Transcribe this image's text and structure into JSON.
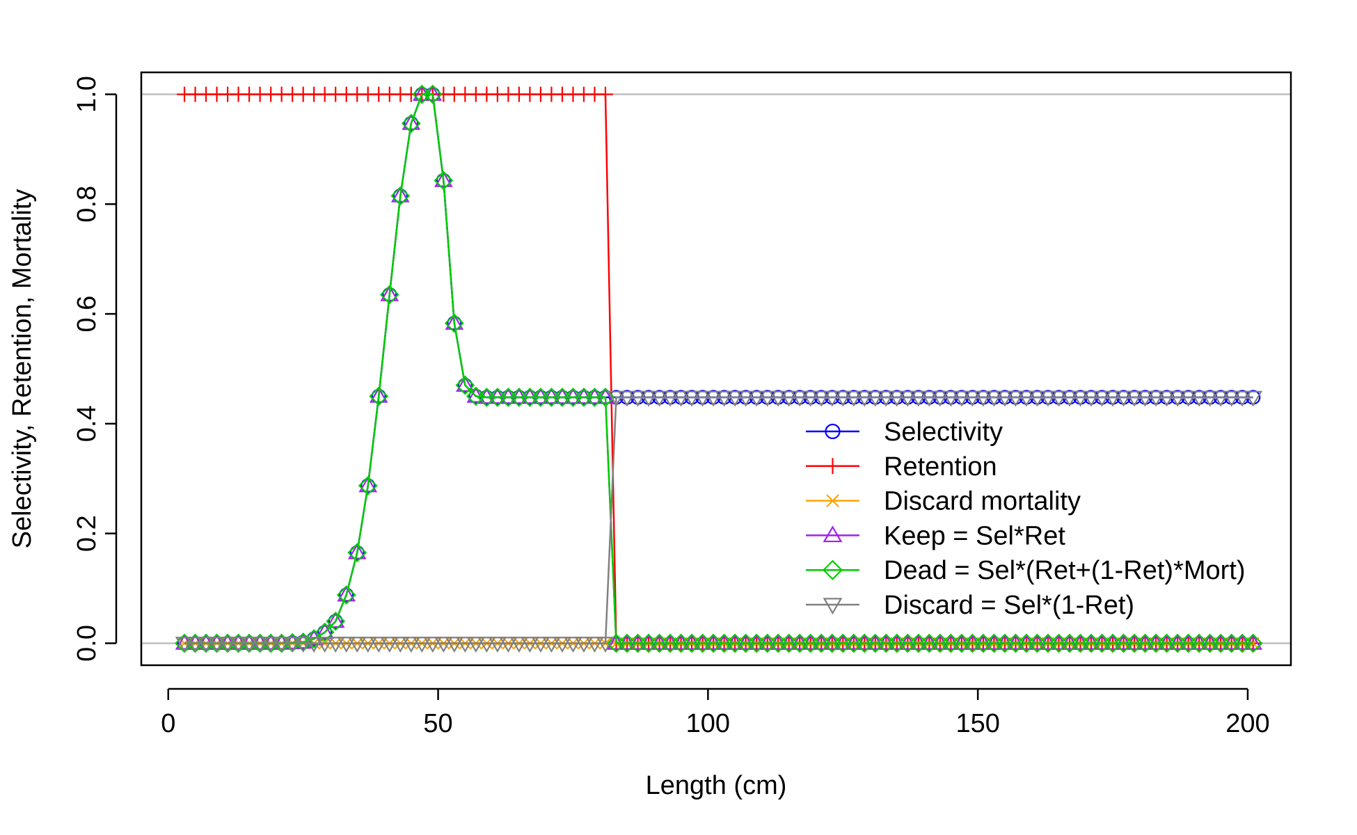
{
  "chart_data": {
    "type": "line",
    "title": "",
    "xlabel": "Length (cm)",
    "ylabel": "Selectivity, Retention, Mortality",
    "xlim": [
      -5,
      208
    ],
    "ylim": [
      -0.04,
      1.04
    ],
    "xticks": [
      0,
      50,
      100,
      150,
      200
    ],
    "xtick_labels": [
      "0",
      "50",
      "100",
      "150",
      "200"
    ],
    "yticks": [
      0,
      0.2,
      0.4,
      0.6,
      0.8,
      1.0
    ],
    "ytick_labels": [
      "0.0",
      "0.2",
      "0.4",
      "0.6",
      "0.8",
      "1.0"
    ],
    "reference_lines_y": [
      0,
      1
    ],
    "reference_line_color": "#bebebe",
    "legend_position": "bottom-right",
    "x": [
      3,
      5,
      7,
      9,
      11,
      13,
      15,
      17,
      19,
      21,
      23,
      25,
      27,
      29,
      31,
      33,
      35,
      37,
      39,
      41,
      43,
      45,
      47,
      49,
      51,
      53,
      55,
      57,
      59,
      61,
      63,
      65,
      67,
      69,
      71,
      73,
      75,
      77,
      79,
      81,
      83,
      85,
      87,
      89,
      91,
      93,
      95,
      97,
      99,
      101,
      103,
      105,
      107,
      109,
      111,
      113,
      115,
      117,
      119,
      121,
      123,
      125,
      127,
      129,
      131,
      133,
      135,
      137,
      139,
      141,
      143,
      145,
      147,
      149,
      151,
      153,
      155,
      157,
      159,
      161,
      163,
      165,
      167,
      169,
      171,
      173,
      175,
      177,
      179,
      181,
      183,
      185,
      187,
      189,
      191,
      193,
      195,
      197,
      199,
      201
    ],
    "series": [
      {
        "name": "Selectivity",
        "color": "#0000ff",
        "marker": "circle",
        "values": [
          0,
          0,
          0,
          0,
          0,
          0,
          0,
          0,
          0,
          0,
          0.001,
          0.002,
          0.008,
          0.02,
          0.04,
          0.088,
          0.165,
          0.287,
          0.45,
          0.635,
          0.815,
          0.947,
          1.0,
          1.0,
          0.843,
          0.583,
          0.47,
          0.45,
          0.448,
          0.448,
          0.448,
          0.448,
          0.448,
          0.448,
          0.448,
          0.448,
          0.448,
          0.448,
          0.448,
          0.448,
          0.448,
          0.448,
          0.448,
          0.448,
          0.448,
          0.448,
          0.448,
          0.448,
          0.448,
          0.448,
          0.448,
          0.448,
          0.448,
          0.448,
          0.448,
          0.448,
          0.448,
          0.448,
          0.448,
          0.448,
          0.448,
          0.448,
          0.448,
          0.448,
          0.448,
          0.448,
          0.448,
          0.448,
          0.448,
          0.448,
          0.448,
          0.448,
          0.448,
          0.448,
          0.448,
          0.448,
          0.448,
          0.448,
          0.448,
          0.448,
          0.448,
          0.448,
          0.448,
          0.448,
          0.448,
          0.448,
          0.448,
          0.448,
          0.448,
          0.448,
          0.448,
          0.448,
          0.448,
          0.448,
          0.448,
          0.448,
          0.448,
          0.448,
          0.448,
          0.448
        ]
      },
      {
        "name": "Retention",
        "color": "#ff0000",
        "marker": "plus",
        "values": [
          1,
          1,
          1,
          1,
          1,
          1,
          1,
          1,
          1,
          1,
          1,
          1,
          1,
          1,
          1,
          1,
          1,
          1,
          1,
          1,
          1,
          1,
          1,
          1,
          1,
          1,
          1,
          1,
          1,
          1,
          1,
          1,
          1,
          1,
          1,
          1,
          1,
          1,
          1,
          1,
          0,
          0,
          0,
          0,
          0,
          0,
          0,
          0,
          0,
          0,
          0,
          0,
          0,
          0,
          0,
          0,
          0,
          0,
          0,
          0,
          0,
          0,
          0,
          0,
          0,
          0,
          0,
          0,
          0,
          0,
          0,
          0,
          0,
          0,
          0,
          0,
          0,
          0,
          0,
          0,
          0,
          0,
          0,
          0,
          0,
          0,
          0,
          0,
          0,
          0,
          0,
          0,
          0,
          0,
          0,
          0,
          0,
          0,
          0,
          0
        ]
      },
      {
        "name": "Discard mortality",
        "color": "#ffa500",
        "marker": "x",
        "values": [
          0,
          0,
          0,
          0,
          0,
          0,
          0,
          0,
          0,
          0,
          0,
          0,
          0,
          0,
          0,
          0,
          0,
          0,
          0,
          0,
          0,
          0,
          0,
          0,
          0,
          0,
          0,
          0,
          0,
          0,
          0,
          0,
          0,
          0,
          0,
          0,
          0,
          0,
          0,
          0,
          0,
          0,
          0,
          0,
          0,
          0,
          0,
          0,
          0,
          0,
          0,
          0,
          0,
          0,
          0,
          0,
          0,
          0,
          0,
          0,
          0,
          0,
          0,
          0,
          0,
          0,
          0,
          0,
          0,
          0,
          0,
          0,
          0,
          0,
          0,
          0,
          0,
          0,
          0,
          0,
          0,
          0,
          0,
          0,
          0,
          0,
          0,
          0,
          0,
          0,
          0,
          0,
          0,
          0,
          0,
          0,
          0,
          0,
          0,
          0
        ]
      },
      {
        "name": "Keep = Sel*Ret",
        "color": "#a020f0",
        "marker": "triangle-up",
        "values": [
          0,
          0,
          0,
          0,
          0,
          0,
          0,
          0,
          0,
          0,
          0.001,
          0.002,
          0.008,
          0.02,
          0.04,
          0.088,
          0.165,
          0.287,
          0.45,
          0.635,
          0.815,
          0.947,
          1.0,
          1.0,
          0.843,
          0.583,
          0.47,
          0.45,
          0.448,
          0.448,
          0.448,
          0.448,
          0.448,
          0.448,
          0.448,
          0.448,
          0.448,
          0.448,
          0.448,
          0.448,
          0,
          0,
          0,
          0,
          0,
          0,
          0,
          0,
          0,
          0,
          0,
          0,
          0,
          0,
          0,
          0,
          0,
          0,
          0,
          0,
          0,
          0,
          0,
          0,
          0,
          0,
          0,
          0,
          0,
          0,
          0,
          0,
          0,
          0,
          0,
          0,
          0,
          0,
          0,
          0,
          0,
          0,
          0,
          0,
          0,
          0,
          0,
          0,
          0,
          0,
          0,
          0,
          0,
          0,
          0,
          0,
          0,
          0,
          0,
          0
        ]
      },
      {
        "name": "Dead = Sel*(Ret+(1-Ret)*Mort)",
        "color": "#00cd00",
        "marker": "diamond",
        "values": [
          0,
          0,
          0,
          0,
          0,
          0,
          0,
          0,
          0,
          0,
          0.001,
          0.002,
          0.008,
          0.02,
          0.04,
          0.088,
          0.165,
          0.287,
          0.45,
          0.635,
          0.815,
          0.947,
          1.0,
          1.0,
          0.843,
          0.583,
          0.47,
          0.45,
          0.448,
          0.448,
          0.448,
          0.448,
          0.448,
          0.448,
          0.448,
          0.448,
          0.448,
          0.448,
          0.448,
          0.448,
          0,
          0,
          0,
          0,
          0,
          0,
          0,
          0,
          0,
          0,
          0,
          0,
          0,
          0,
          0,
          0,
          0,
          0,
          0,
          0,
          0,
          0,
          0,
          0,
          0,
          0,
          0,
          0,
          0,
          0,
          0,
          0,
          0,
          0,
          0,
          0,
          0,
          0,
          0,
          0,
          0,
          0,
          0,
          0,
          0,
          0,
          0,
          0,
          0,
          0,
          0,
          0,
          0,
          0,
          0,
          0,
          0,
          0,
          0,
          0
        ]
      },
      {
        "name": "Discard = Sel*(1-Ret)",
        "color": "#808080",
        "marker": "triangle-down",
        "values": [
          0,
          0,
          0,
          0,
          0,
          0,
          0,
          0,
          0,
          0,
          0,
          0,
          0,
          0,
          0,
          0,
          0,
          0,
          0,
          0,
          0,
          0,
          0,
          0,
          0,
          0,
          0,
          0,
          0,
          0,
          0,
          0,
          0,
          0,
          0,
          0,
          0,
          0,
          0,
          0,
          0.448,
          0.448,
          0.448,
          0.448,
          0.448,
          0.448,
          0.448,
          0.448,
          0.448,
          0.448,
          0.448,
          0.448,
          0.448,
          0.448,
          0.448,
          0.448,
          0.448,
          0.448,
          0.448,
          0.448,
          0.448,
          0.448,
          0.448,
          0.448,
          0.448,
          0.448,
          0.448,
          0.448,
          0.448,
          0.448,
          0.448,
          0.448,
          0.448,
          0.448,
          0.448,
          0.448,
          0.448,
          0.448,
          0.448,
          0.448,
          0.448,
          0.448,
          0.448,
          0.448,
          0.448,
          0.448,
          0.448,
          0.448,
          0.448,
          0.448,
          0.448,
          0.448,
          0.448,
          0.448,
          0.448,
          0.448,
          0.448,
          0.448,
          0.448,
          0.448
        ]
      }
    ]
  }
}
